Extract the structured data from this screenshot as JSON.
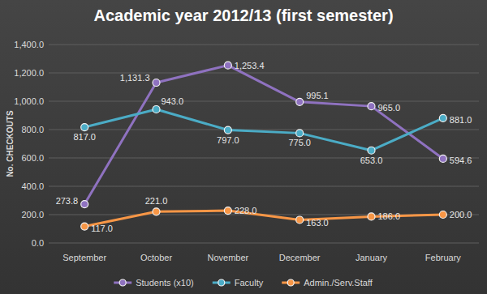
{
  "chart_data": {
    "type": "line",
    "title": "Academic year 2012/13 (first semester)",
    "ylabel": "No. CHECKOUTS",
    "categories": [
      "September",
      "October",
      "November",
      "December",
      "January",
      "February"
    ],
    "series": [
      {
        "name": "Students (x10)",
        "color": "#8f72c0",
        "marker": "circle",
        "values": [
          273.8,
          1131.3,
          1253.4,
          995.1,
          965.0,
          594.6
        ],
        "value_labels": [
          "273.8",
          "1,131.3",
          "1,253.4",
          "995.1",
          "965.0",
          "594.6"
        ]
      },
      {
        "name": "Faculty",
        "color": "#4bacc6",
        "marker": "circle",
        "values": [
          817.0,
          943.0,
          797.0,
          775.0,
          653.0,
          881.0
        ],
        "value_labels": [
          "817.0",
          "943.0",
          "797.0",
          "775.0",
          "653.0",
          "881.0"
        ]
      },
      {
        "name": "Admin./Serv.Staff",
        "color": "#f79646",
        "marker": "circle",
        "values": [
          117.0,
          221.0,
          228.0,
          163.0,
          186.0,
          200.0
        ],
        "value_labels": [
          "117.0",
          "221.0",
          "228.0",
          "163.0",
          "186.0",
          "200.0"
        ]
      }
    ],
    "ylim": [
      0,
      1400
    ],
    "yticks": [
      {
        "value": 0,
        "label": "0.0"
      },
      {
        "value": 200,
        "label": "200.0"
      },
      {
        "value": 400,
        "label": "400.0"
      },
      {
        "value": 600,
        "label": "600.0"
      },
      {
        "value": 800,
        "label": "800.0"
      },
      {
        "value": 1000,
        "label": "1,000.0"
      },
      {
        "value": 1200,
        "label": "1,200.0"
      },
      {
        "value": 1400,
        "label": "1,400.0"
      }
    ],
    "grid": true,
    "data_labels": true,
    "legend": "bottom"
  }
}
